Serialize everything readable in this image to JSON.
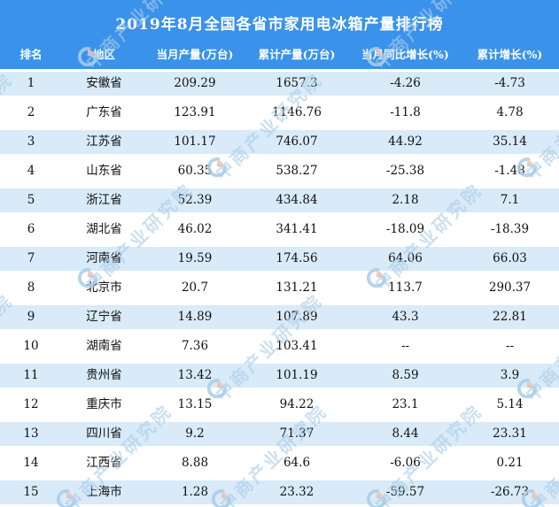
{
  "page": {
    "title": "2019年8月全国各省市家用电冰箱产量排行榜"
  },
  "watermark": {
    "text": "中商产业研究院",
    "logo": "askci-logo-icon"
  },
  "colors": {
    "header_blue": "#3a92ea",
    "row_alt_blue": "#d9eaf8",
    "header_text": "#ffffff",
    "body_text": "#111111",
    "watermark_blue": "#a9cde9",
    "watermark_logo_salmon": "#f4c3b0"
  },
  "chart_data": {
    "type": "table",
    "title": "2019年8月全国各省市家用电冰箱产量排行榜",
    "columns": [
      "排名",
      "地区",
      "当月产量(万台)",
      "累计产量(万台)",
      "当月同比增长(%)",
      "累计增长(%)"
    ],
    "rows": [
      [
        "1",
        "安徽省",
        "209.29",
        "1657.3",
        "-4.26",
        "-4.73"
      ],
      [
        "2",
        "广东省",
        "123.91",
        "1146.76",
        "-11.8",
        "4.78"
      ],
      [
        "3",
        "江苏省",
        "101.17",
        "746.07",
        "44.92",
        "35.14"
      ],
      [
        "4",
        "山东省",
        "60.35",
        "538.27",
        "-25.38",
        "-1.48"
      ],
      [
        "5",
        "浙江省",
        "52.39",
        "434.84",
        "2.18",
        "7.1"
      ],
      [
        "6",
        "湖北省",
        "46.02",
        "341.41",
        "-18.09",
        "-18.39"
      ],
      [
        "7",
        "河南省",
        "19.59",
        "174.56",
        "64.06",
        "66.03"
      ],
      [
        "8",
        "北京市",
        "20.7",
        "131.21",
        "113.7",
        "290.37"
      ],
      [
        "9",
        "辽宁省",
        "14.89",
        "107.89",
        "43.3",
        "22.81"
      ],
      [
        "10",
        "湖南省",
        "7.36",
        "103.41",
        "--",
        "--"
      ],
      [
        "11",
        "贵州省",
        "13.42",
        "101.19",
        "8.59",
        "3.9"
      ],
      [
        "12",
        "重庆市",
        "13.15",
        "94.22",
        "23.1",
        "5.14"
      ],
      [
        "13",
        "四川省",
        "9.2",
        "71.37",
        "8.44",
        "23.31"
      ],
      [
        "14",
        "江西省",
        "8.88",
        "64.6",
        "-6.06",
        "0.21"
      ],
      [
        "15",
        "上海市",
        "1.28",
        "23.32",
        "-59.57",
        "-26.73"
      ]
    ],
    "layout": {
      "row_striping": "odd rows light blue, even rows white",
      "header_position": "top",
      "watermark_pattern": "diagonal repeated brand text with circular logo"
    }
  }
}
